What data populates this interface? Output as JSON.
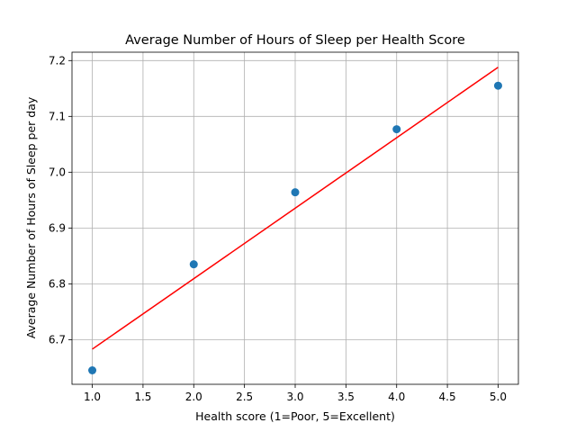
{
  "chart_data": {
    "type": "scatter",
    "title": "Average Number of Hours of Sleep per Health Score",
    "xlabel": "Health score (1=Poor, 5=Excellent)",
    "ylabel": "Average Number of Hours of Sleep per day",
    "xlim": [
      0.8,
      5.2
    ],
    "ylim": [
      6.62,
      7.215
    ],
    "xticks": [
      "1.0",
      "1.5",
      "2.0",
      "2.5",
      "3.0",
      "3.5",
      "4.0",
      "4.5",
      "5.0"
    ],
    "yticks": [
      "6.7",
      "6.8",
      "6.9",
      "7.0",
      "7.1",
      "7.2"
    ],
    "grid": true,
    "series": [
      {
        "type": "scatter",
        "x": [
          1,
          2,
          3,
          4,
          5
        ],
        "y": [
          6.645,
          6.835,
          6.964,
          7.077,
          7.155
        ]
      },
      {
        "type": "line",
        "x": [
          1,
          5
        ],
        "y": [
          6.683,
          7.188
        ]
      }
    ],
    "colors": {
      "points": "#1f77b4",
      "trend": "#ff0000",
      "grid": "#b0b0b0",
      "axes": "#000000"
    }
  }
}
